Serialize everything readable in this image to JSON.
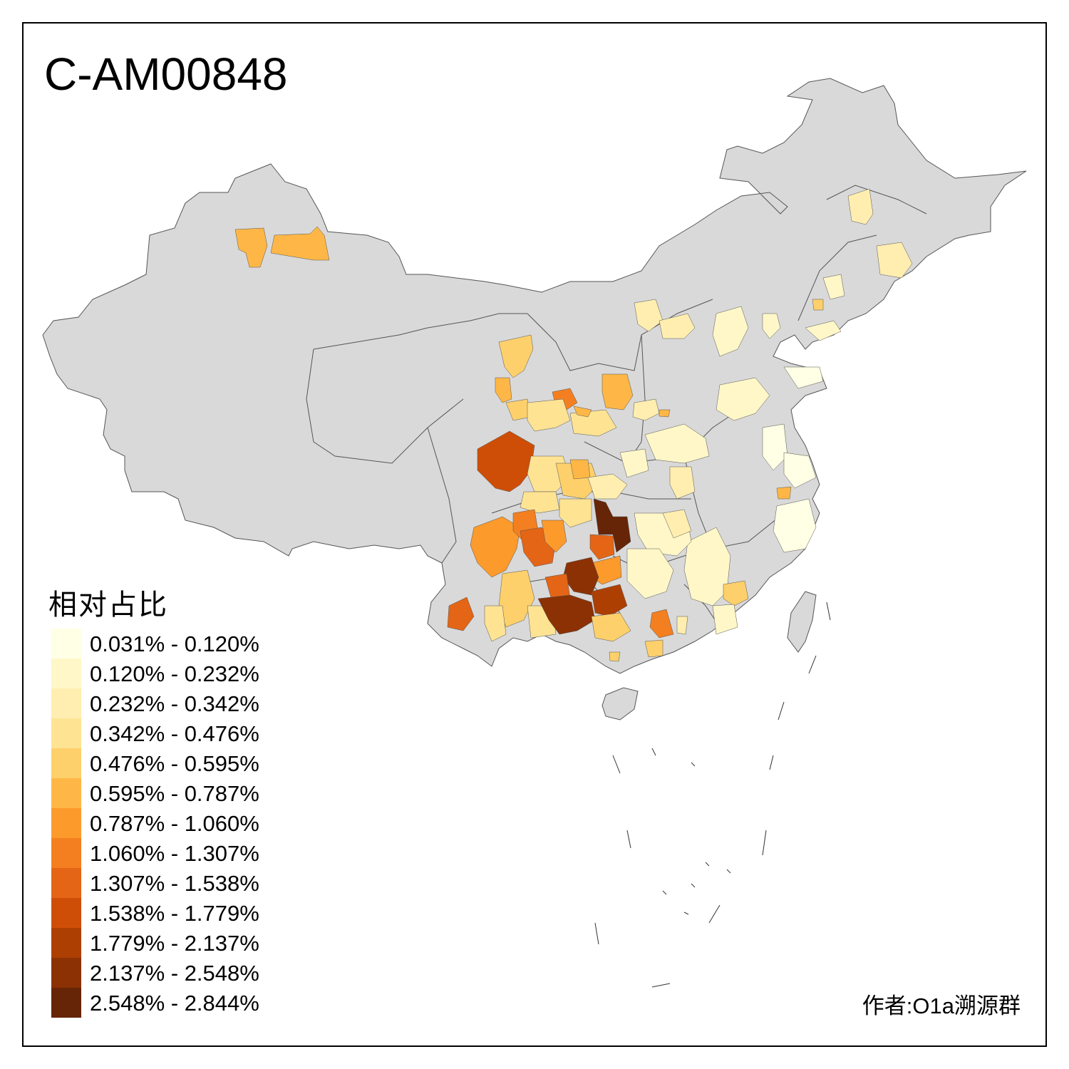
{
  "title": "C-AM00848",
  "legend": {
    "title": "相对占比",
    "items": [
      {
        "label": "0.031% - 0.120%",
        "color": "#FFFFE5"
      },
      {
        "label": "0.120% - 0.232%",
        "color": "#FFF7C8"
      },
      {
        "label": "0.232% - 0.342%",
        "color": "#FFEEB0"
      },
      {
        "label": "0.342% - 0.476%",
        "color": "#FEE393"
      },
      {
        "label": "0.476% - 0.595%",
        "color": "#FED06B"
      },
      {
        "label": "0.595% - 0.787%",
        "color": "#FEB746"
      },
      {
        "label": "0.787% - 1.060%",
        "color": "#FC9A2C"
      },
      {
        "label": "1.060% - 1.307%",
        "color": "#F47F20"
      },
      {
        "label": "1.307% - 1.538%",
        "color": "#E46515"
      },
      {
        "label": "1.538% - 1.779%",
        "color": "#CF4E07"
      },
      {
        "label": "1.779% - 2.137%",
        "color": "#AD3F03"
      },
      {
        "label": "2.137% - 2.548%",
        "color": "#8B3104"
      },
      {
        "label": "2.548% - 2.844%",
        "color": "#662506"
      }
    ]
  },
  "author": "作者:O1a溯源群",
  "colors": {
    "base_land": "#D9D9D9",
    "border": "#555555"
  }
}
